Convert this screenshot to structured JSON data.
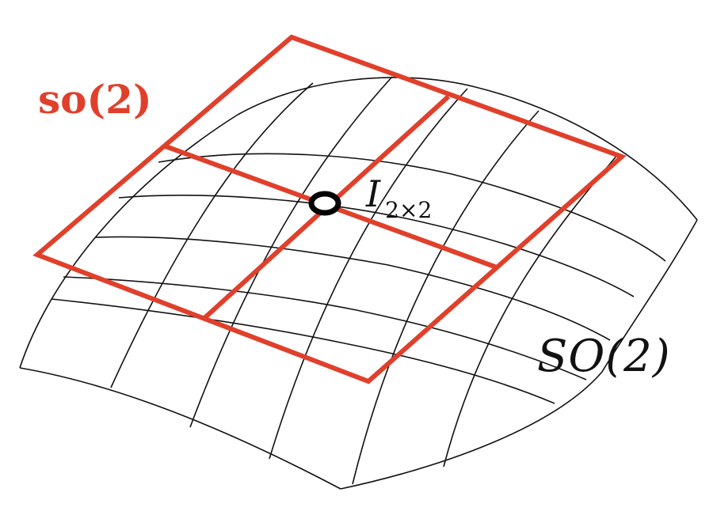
{
  "labels": {
    "tangent_space": "so(2)",
    "manifold": "SO(2)",
    "identity_main": "I",
    "identity_sub": "2×2"
  },
  "colors": {
    "tangent_plane": "#e0402b",
    "manifold_grid": "#111111",
    "identity_point": "#000000",
    "background": "#ffffff"
  }
}
